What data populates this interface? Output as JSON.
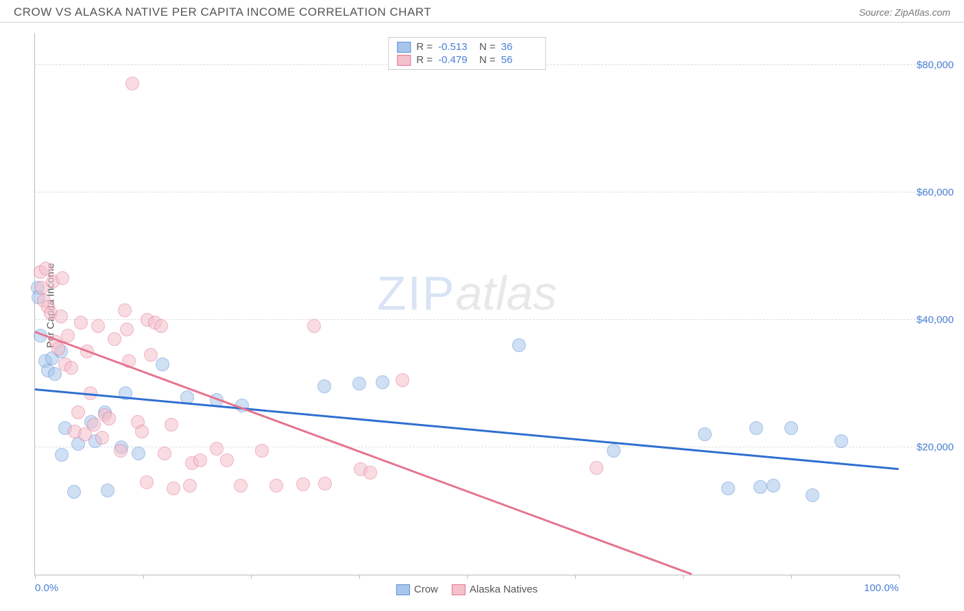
{
  "header": {
    "title": "CROW VS ALASKA NATIVE PER CAPITA INCOME CORRELATION CHART",
    "source": "Source: ZipAtlas.com"
  },
  "watermark": {
    "zip": "ZIP",
    "atlas": "atlas"
  },
  "chart": {
    "type": "scatter",
    "ylabel": "Per Capita Income",
    "xlim": [
      0,
      100
    ],
    "ylim": [
      0,
      85000
    ],
    "xtick_positions": [
      0,
      12.5,
      25,
      37.5,
      50,
      62.5,
      75,
      87.5,
      100
    ],
    "xtick_labels_shown": {
      "0": "0.0%",
      "100": "100.0%"
    },
    "ytick_positions": [
      20000,
      40000,
      60000,
      80000
    ],
    "ytick_labels": [
      "$20,000",
      "$40,000",
      "$60,000",
      "$80,000"
    ],
    "grid_color": "#dddddd",
    "axis_color": "#bbbbbb",
    "background_color": "#ffffff",
    "tick_label_color": "#4a7fd6",
    "label_fontsize": 15,
    "title_fontsize": 17,
    "marker_radius": 9,
    "marker_opacity": 0.55,
    "series": [
      {
        "name": "Crow",
        "fill": "#a8c6ec",
        "stroke": "#5b8fd6",
        "trend_color": "#2f6fd0",
        "trend": {
          "x1": 0,
          "y1": 29000,
          "x2": 100,
          "y2": 16500
        },
        "R": "-0.513",
        "N": "36",
        "points": [
          [
            0.3,
            45000
          ],
          [
            0.4,
            43500
          ],
          [
            0.6,
            37500
          ],
          [
            1.2,
            33500
          ],
          [
            1.5,
            32000
          ],
          [
            2.0,
            34000
          ],
          [
            2.3,
            31500
          ],
          [
            3.0,
            35000
          ],
          [
            3.1,
            18800
          ],
          [
            3.5,
            23000
          ],
          [
            4.5,
            13000
          ],
          [
            5.0,
            20500
          ],
          [
            6.5,
            24000
          ],
          [
            7.0,
            21000
          ],
          [
            8.1,
            25500
          ],
          [
            8.4,
            13200
          ],
          [
            10.0,
            20000
          ],
          [
            10.5,
            28500
          ],
          [
            12.0,
            19000
          ],
          [
            14.8,
            33000
          ],
          [
            17.6,
            27800
          ],
          [
            21.0,
            27400
          ],
          [
            24.0,
            26500
          ],
          [
            33.5,
            29500
          ],
          [
            37.5,
            30000
          ],
          [
            40.2,
            30200
          ],
          [
            56.0,
            36000
          ],
          [
            67.0,
            19500
          ],
          [
            77.5,
            22000
          ],
          [
            80.2,
            13500
          ],
          [
            83.5,
            23000
          ],
          [
            84.0,
            13800
          ],
          [
            85.5,
            14000
          ],
          [
            87.5,
            23000
          ],
          [
            90.0,
            12500
          ],
          [
            93.3,
            21000
          ]
        ]
      },
      {
        "name": "Alaska Natives",
        "fill": "#f4c0cc",
        "stroke": "#e5748f",
        "trend_color": "#e5748f",
        "trend": {
          "x1": 0,
          "y1": 38000,
          "x2": 76,
          "y2": 0
        },
        "R": "-0.479",
        "N": "56",
        "points": [
          [
            0.6,
            47500
          ],
          [
            0.8,
            45000
          ],
          [
            1.0,
            43000
          ],
          [
            1.3,
            48000
          ],
          [
            1.5,
            42000
          ],
          [
            1.8,
            41000
          ],
          [
            2.1,
            46000
          ],
          [
            2.4,
            36500
          ],
          [
            2.7,
            35500
          ],
          [
            3.0,
            40500
          ],
          [
            3.2,
            46500
          ],
          [
            3.5,
            33000
          ],
          [
            3.8,
            37500
          ],
          [
            4.2,
            32500
          ],
          [
            4.6,
            22500
          ],
          [
            5.0,
            25500
          ],
          [
            5.3,
            39500
          ],
          [
            5.8,
            22000
          ],
          [
            6.0,
            35000
          ],
          [
            6.4,
            28500
          ],
          [
            6.8,
            23500
          ],
          [
            7.3,
            39000
          ],
          [
            7.8,
            21500
          ],
          [
            8.1,
            25000
          ],
          [
            8.6,
            24500
          ],
          [
            9.2,
            37000
          ],
          [
            9.9,
            19500
          ],
          [
            10.4,
            41500
          ],
          [
            10.6,
            38500
          ],
          [
            10.9,
            33500
          ],
          [
            11.3,
            77000
          ],
          [
            11.9,
            24000
          ],
          [
            12.4,
            22500
          ],
          [
            12.9,
            14500
          ],
          [
            13.0,
            40000
          ],
          [
            13.4,
            34500
          ],
          [
            13.9,
            39500
          ],
          [
            14.6,
            39000
          ],
          [
            15.0,
            19000
          ],
          [
            15.8,
            23500
          ],
          [
            16.0,
            13500
          ],
          [
            17.9,
            14000
          ],
          [
            18.2,
            17500
          ],
          [
            19.1,
            17900
          ],
          [
            21.0,
            19800
          ],
          [
            22.2,
            18000
          ],
          [
            23.8,
            14000
          ],
          [
            26.3,
            19500
          ],
          [
            27.9,
            14000
          ],
          [
            31.0,
            14200
          ],
          [
            32.3,
            39000
          ],
          [
            33.6,
            14300
          ],
          [
            37.7,
            16500
          ],
          [
            38.8,
            16000
          ],
          [
            42.5,
            30500
          ],
          [
            65.0,
            16800
          ]
        ]
      }
    ],
    "legend_top": {
      "r_label": "R =",
      "n_label": "N ="
    },
    "legend_bottom": [
      {
        "label": "Crow",
        "series_index": 0
      },
      {
        "label": "Alaska Natives",
        "series_index": 1
      }
    ]
  }
}
